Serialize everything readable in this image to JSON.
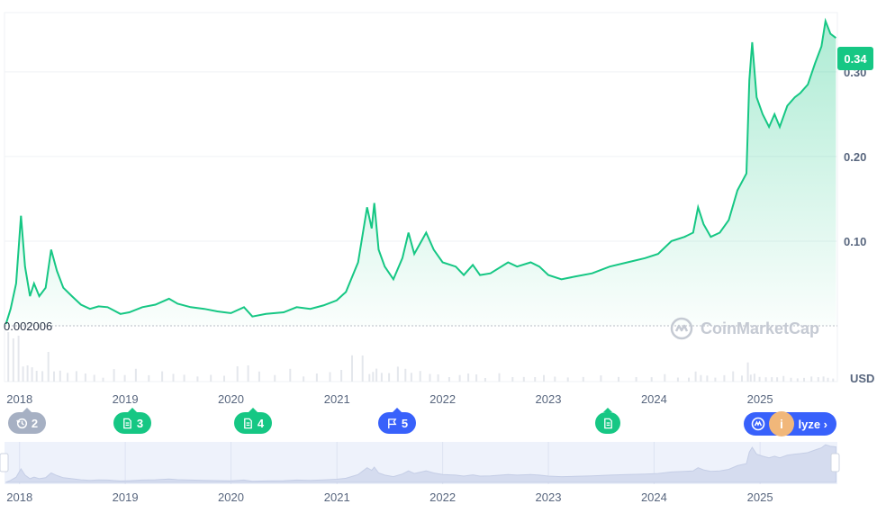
{
  "chart_data": {
    "type": "area",
    "currency": "USD",
    "start_price_label": "0.002006",
    "current_price_label": "0.34",
    "ylim": [
      0,
      0.37
    ],
    "yticks": [
      "0.10",
      "0.20",
      "0.30"
    ],
    "grid": true,
    "series": [
      {
        "color": "#16c784",
        "points": [
          [
            "2017-11-15",
            0.002
          ],
          [
            "2017-12-01",
            0.02
          ],
          [
            "2017-12-20",
            0.05
          ],
          [
            "2018-01-06",
            0.13
          ],
          [
            "2018-01-20",
            0.07
          ],
          [
            "2018-02-06",
            0.035
          ],
          [
            "2018-02-20",
            0.05
          ],
          [
            "2018-03-10",
            0.035
          ],
          [
            "2018-04-01",
            0.045
          ],
          [
            "2018-04-20",
            0.09
          ],
          [
            "2018-05-10",
            0.065
          ],
          [
            "2018-06-01",
            0.045
          ],
          [
            "2018-07-01",
            0.035
          ],
          [
            "2018-08-01",
            0.025
          ],
          [
            "2018-09-01",
            0.02
          ],
          [
            "2018-10-01",
            0.023
          ],
          [
            "2018-11-01",
            0.022
          ],
          [
            "2018-12-15",
            0.014
          ],
          [
            "2019-01-15",
            0.016
          ],
          [
            "2019-03-01",
            0.022
          ],
          [
            "2019-04-15",
            0.025
          ],
          [
            "2019-06-01",
            0.032
          ],
          [
            "2019-07-01",
            0.026
          ],
          [
            "2019-08-15",
            0.022
          ],
          [
            "2019-10-01",
            0.02
          ],
          [
            "2019-11-15",
            0.017
          ],
          [
            "2020-01-01",
            0.015
          ],
          [
            "2020-02-15",
            0.022
          ],
          [
            "2020-03-15",
            0.011
          ],
          [
            "2020-05-01",
            0.014
          ],
          [
            "2020-07-01",
            0.016
          ],
          [
            "2020-08-15",
            0.022
          ],
          [
            "2020-10-01",
            0.02
          ],
          [
            "2020-11-15",
            0.024
          ],
          [
            "2020-12-31",
            0.03
          ],
          [
            "2021-02-01",
            0.04
          ],
          [
            "2021-03-15",
            0.075
          ],
          [
            "2021-04-15",
            0.14
          ],
          [
            "2021-05-01",
            0.115
          ],
          [
            "2021-05-10",
            0.145
          ],
          [
            "2021-05-25",
            0.09
          ],
          [
            "2021-06-15",
            0.07
          ],
          [
            "2021-07-15",
            0.055
          ],
          [
            "2021-08-15",
            0.08
          ],
          [
            "2021-09-05",
            0.11
          ],
          [
            "2021-09-25",
            0.085
          ],
          [
            "2021-11-05",
            0.11
          ],
          [
            "2021-12-01",
            0.09
          ],
          [
            "2022-01-01",
            0.075
          ],
          [
            "2022-02-15",
            0.07
          ],
          [
            "2022-03-15",
            0.06
          ],
          [
            "2022-04-15",
            0.072
          ],
          [
            "2022-05-10",
            0.06
          ],
          [
            "2022-06-15",
            0.062
          ],
          [
            "2022-08-15",
            0.075
          ],
          [
            "2022-09-15",
            0.07
          ],
          [
            "2022-11-01",
            0.075
          ],
          [
            "2022-12-01",
            0.07
          ],
          [
            "2023-01-01",
            0.06
          ],
          [
            "2023-02-15",
            0.055
          ],
          [
            "2023-04-01",
            0.058
          ],
          [
            "2023-06-01",
            0.062
          ],
          [
            "2023-08-01",
            0.07
          ],
          [
            "2023-10-01",
            0.075
          ],
          [
            "2023-12-01",
            0.08
          ],
          [
            "2024-01-15",
            0.085
          ],
          [
            "2024-03-01",
            0.1
          ],
          [
            "2024-04-15",
            0.105
          ],
          [
            "2024-05-15",
            0.11
          ],
          [
            "2024-06-01",
            0.14
          ],
          [
            "2024-06-20",
            0.12
          ],
          [
            "2024-07-15",
            0.105
          ],
          [
            "2024-08-15",
            0.11
          ],
          [
            "2024-09-15",
            0.125
          ],
          [
            "2024-10-15",
            0.16
          ],
          [
            "2024-11-15",
            0.18
          ],
          [
            "2024-11-25",
            0.29
          ],
          [
            "2024-12-05",
            0.335
          ],
          [
            "2024-12-20",
            0.27
          ],
          [
            "2025-01-10",
            0.25
          ],
          [
            "2025-02-01",
            0.235
          ],
          [
            "2025-02-20",
            0.25
          ],
          [
            "2025-03-10",
            0.235
          ],
          [
            "2025-04-05",
            0.26
          ],
          [
            "2025-05-01",
            0.27
          ],
          [
            "2025-05-20",
            0.275
          ],
          [
            "2025-06-15",
            0.285
          ],
          [
            "2025-07-10",
            0.31
          ],
          [
            "2025-08-01",
            0.33
          ],
          [
            "2025-08-15",
            0.36
          ],
          [
            "2025-09-01",
            0.345
          ],
          [
            "2025-09-20",
            0.34
          ]
        ]
      }
    ],
    "xticks": [
      "2018",
      "2019",
      "2020",
      "2021",
      "2022",
      "2023",
      "2024",
      "2025"
    ]
  },
  "watermark": "CoinMarketCap",
  "events": [
    {
      "icon": "history-icon",
      "count": "2",
      "color": "#a6b0c3"
    },
    {
      "icon": "document-icon",
      "count": "3",
      "color": "#16c784"
    },
    {
      "icon": "document-icon",
      "count": "4",
      "color": "#16c784"
    },
    {
      "icon": "flag-icon",
      "count": "5",
      "color": "#3861fb"
    },
    {
      "icon": "document-icon",
      "count": "",
      "color": "#16c784"
    }
  ],
  "analyze_button_label": "lyze ›",
  "info_dot_label": "i"
}
